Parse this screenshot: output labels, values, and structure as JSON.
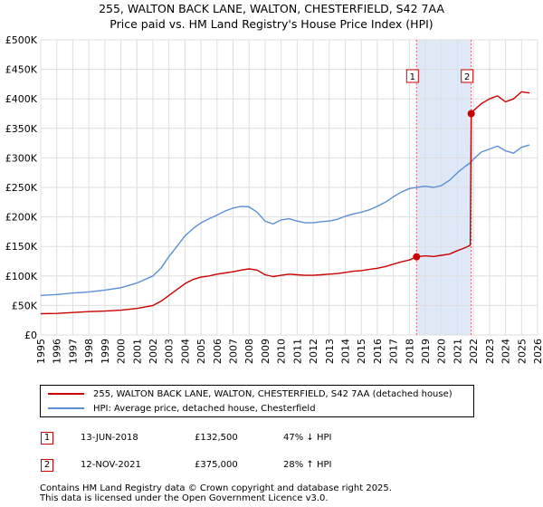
{
  "title": "255, WALTON BACK LANE, WALTON, CHESTERFIELD, S42 7AA",
  "subtitle": "Price paid vs. HM Land Registry's House Price Index (HPI)",
  "colors": {
    "price_paid": "#cc0000",
    "hpi": "#5b8fd6",
    "band": "#dfe8f7",
    "marker_line": "#e06060",
    "grid": "#dddddd"
  },
  "chart_data": {
    "type": "line",
    "title": "255, WALTON BACK LANE, WALTON, CHESTERFIELD, S42 7AA",
    "subtitle": "Price paid vs. HM Land Registry's House Price Index (HPI)",
    "xlabel": "",
    "ylabel": "",
    "xlim": [
      1995,
      2026
    ],
    "ylim": [
      0,
      500000
    ],
    "x_ticks": [
      1995,
      1996,
      1997,
      1998,
      1999,
      2000,
      2001,
      2002,
      2003,
      2004,
      2005,
      2006,
      2007,
      2008,
      2009,
      2010,
      2011,
      2012,
      2013,
      2014,
      2015,
      2016,
      2017,
      2018,
      2019,
      2020,
      2021,
      2022,
      2023,
      2024,
      2025,
      2026
    ],
    "y_ticks": [
      {
        "value": 0,
        "label": "£0"
      },
      {
        "value": 50000,
        "label": "£50K"
      },
      {
        "value": 100000,
        "label": "£100K"
      },
      {
        "value": 150000,
        "label": "£150K"
      },
      {
        "value": 200000,
        "label": "£200K"
      },
      {
        "value": 250000,
        "label": "£250K"
      },
      {
        "value": 300000,
        "label": "£300K"
      },
      {
        "value": 350000,
        "label": "£350K"
      },
      {
        "value": 400000,
        "label": "£400K"
      },
      {
        "value": 450000,
        "label": "£450K"
      },
      {
        "value": 500000,
        "label": "£500K"
      }
    ],
    "grid": true,
    "shaded_band": [
      2018.45,
      2021.87
    ],
    "series": [
      {
        "name": "255, WALTON BACK LANE, WALTON, CHESTERFIELD, S42 7AA (detached house)",
        "color": "#cc0000",
        "points": [
          [
            1995.0,
            36000
          ],
          [
            1996.0,
            36500
          ],
          [
            1997.0,
            38000
          ],
          [
            1998.0,
            39500
          ],
          [
            1999.0,
            40500
          ],
          [
            2000.0,
            42000
          ],
          [
            2001.0,
            45000
          ],
          [
            2002.0,
            50000
          ],
          [
            2002.5,
            57000
          ],
          [
            2003.0,
            67000
          ],
          [
            2003.5,
            77000
          ],
          [
            2004.0,
            87000
          ],
          [
            2004.5,
            94000
          ],
          [
            2005.0,
            98000
          ],
          [
            2005.5,
            100000
          ],
          [
            2006.0,
            103000
          ],
          [
            2006.5,
            105000
          ],
          [
            2007.0,
            107000
          ],
          [
            2007.5,
            110000
          ],
          [
            2008.0,
            112000
          ],
          [
            2008.5,
            110000
          ],
          [
            2009.0,
            102000
          ],
          [
            2009.5,
            99000
          ],
          [
            2010.0,
            101000
          ],
          [
            2010.5,
            103000
          ],
          [
            2011.0,
            102000
          ],
          [
            2011.5,
            101000
          ],
          [
            2012.0,
            101000
          ],
          [
            2012.5,
            102000
          ],
          [
            2013.0,
            103000
          ],
          [
            2013.5,
            104000
          ],
          [
            2014.0,
            106000
          ],
          [
            2014.5,
            108000
          ],
          [
            2015.0,
            109000
          ],
          [
            2015.5,
            111000
          ],
          [
            2016.0,
            113000
          ],
          [
            2016.5,
            116000
          ],
          [
            2017.0,
            120000
          ],
          [
            2017.5,
            124000
          ],
          [
            2018.0,
            127000
          ],
          [
            2018.45,
            132500
          ],
          [
            2019.0,
            134000
          ],
          [
            2019.5,
            133000
          ],
          [
            2020.0,
            135000
          ],
          [
            2020.5,
            137000
          ],
          [
            2021.0,
            143000
          ],
          [
            2021.5,
            148000
          ],
          [
            2021.8,
            152000
          ],
          [
            2021.86,
            375000
          ],
          [
            2022.0,
            380000
          ],
          [
            2022.5,
            392000
          ],
          [
            2023.0,
            400000
          ],
          [
            2023.5,
            405000
          ],
          [
            2024.0,
            395000
          ],
          [
            2024.5,
            400000
          ],
          [
            2025.0,
            412000
          ],
          [
            2025.5,
            410000
          ]
        ]
      },
      {
        "name": "HPI: Average price, detached house, Chesterfield",
        "color": "#5b8fd6",
        "points": [
          [
            1995.0,
            67000
          ],
          [
            1996.0,
            68500
          ],
          [
            1997.0,
            71000
          ],
          [
            1998.0,
            73000
          ],
          [
            1999.0,
            76000
          ],
          [
            2000.0,
            80000
          ],
          [
            2001.0,
            88000
          ],
          [
            2002.0,
            100000
          ],
          [
            2002.5,
            113000
          ],
          [
            2003.0,
            133000
          ],
          [
            2003.5,
            150000
          ],
          [
            2004.0,
            168000
          ],
          [
            2004.5,
            180000
          ],
          [
            2005.0,
            190000
          ],
          [
            2005.5,
            197000
          ],
          [
            2006.0,
            203000
          ],
          [
            2006.5,
            210000
          ],
          [
            2007.0,
            215000
          ],
          [
            2007.5,
            218000
          ],
          [
            2008.0,
            217000
          ],
          [
            2008.5,
            208000
          ],
          [
            2009.0,
            193000
          ],
          [
            2009.5,
            188000
          ],
          [
            2010.0,
            195000
          ],
          [
            2010.5,
            197000
          ],
          [
            2011.0,
            193000
          ],
          [
            2011.5,
            190000
          ],
          [
            2012.0,
            190000
          ],
          [
            2012.5,
            192000
          ],
          [
            2013.0,
            193000
          ],
          [
            2013.5,
            196000
          ],
          [
            2014.0,
            201000
          ],
          [
            2014.5,
            205000
          ],
          [
            2015.0,
            208000
          ],
          [
            2015.5,
            212000
          ],
          [
            2016.0,
            218000
          ],
          [
            2016.5,
            225000
          ],
          [
            2017.0,
            234000
          ],
          [
            2017.5,
            242000
          ],
          [
            2018.0,
            248000
          ],
          [
            2018.45,
            250000
          ],
          [
            2019.0,
            252000
          ],
          [
            2019.5,
            250000
          ],
          [
            2020.0,
            253000
          ],
          [
            2020.5,
            262000
          ],
          [
            2021.0,
            275000
          ],
          [
            2021.5,
            286000
          ],
          [
            2021.86,
            293000
          ],
          [
            2022.0,
            298000
          ],
          [
            2022.5,
            310000
          ],
          [
            2023.0,
            315000
          ],
          [
            2023.5,
            320000
          ],
          [
            2024.0,
            312000
          ],
          [
            2024.5,
            308000
          ],
          [
            2025.0,
            318000
          ],
          [
            2025.5,
            322000
          ]
        ]
      }
    ],
    "transactions": [
      {
        "id": "1",
        "x": 2018.45,
        "y": 132500
      },
      {
        "id": "2",
        "x": 2021.86,
        "y": 375000
      }
    ]
  },
  "legend": {
    "price_paid_label": "255, WALTON BACK LANE, WALTON, CHESTERFIELD, S42 7AA (detached house)",
    "hpi_label": "HPI: Average price, detached house, Chesterfield"
  },
  "transactions_table": [
    {
      "id": "1",
      "date": "13-JUN-2018",
      "price": "£132,500",
      "hpi_change": "47% ↓ HPI"
    },
    {
      "id": "2",
      "date": "12-NOV-2021",
      "price": "£375,000",
      "hpi_change": "28% ↑ HPI"
    }
  ],
  "footer": {
    "line1": "Contains HM Land Registry data © Crown copyright and database right 2025.",
    "line2": "This data is licensed under the Open Government Licence v3.0."
  }
}
